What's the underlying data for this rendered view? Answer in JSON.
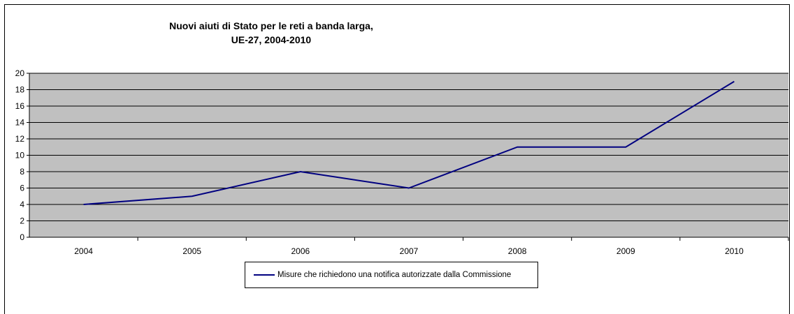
{
  "chart_data": {
    "type": "line",
    "title_lines": [
      "Nuovi aiuti di Stato per le reti a banda larga,",
      "UE-27, 2004-2010"
    ],
    "categories": [
      "2004",
      "2005",
      "2006",
      "2007",
      "2008",
      "2009",
      "2010"
    ],
    "series": [
      {
        "name": "Misure che richiedono una notifica autorizzate dalla Commissione",
        "values": [
          4,
          5,
          8,
          6,
          11,
          11,
          19
        ],
        "color": "#000080"
      }
    ],
    "y_ticks": [
      "0",
      "2",
      "4",
      "6",
      "8",
      "10",
      "12",
      "14",
      "16",
      "18",
      "20"
    ],
    "ylim": [
      0,
      20
    ],
    "grid": true,
    "plot_background": "#c0c0c0",
    "legend_position": "bottom"
  }
}
